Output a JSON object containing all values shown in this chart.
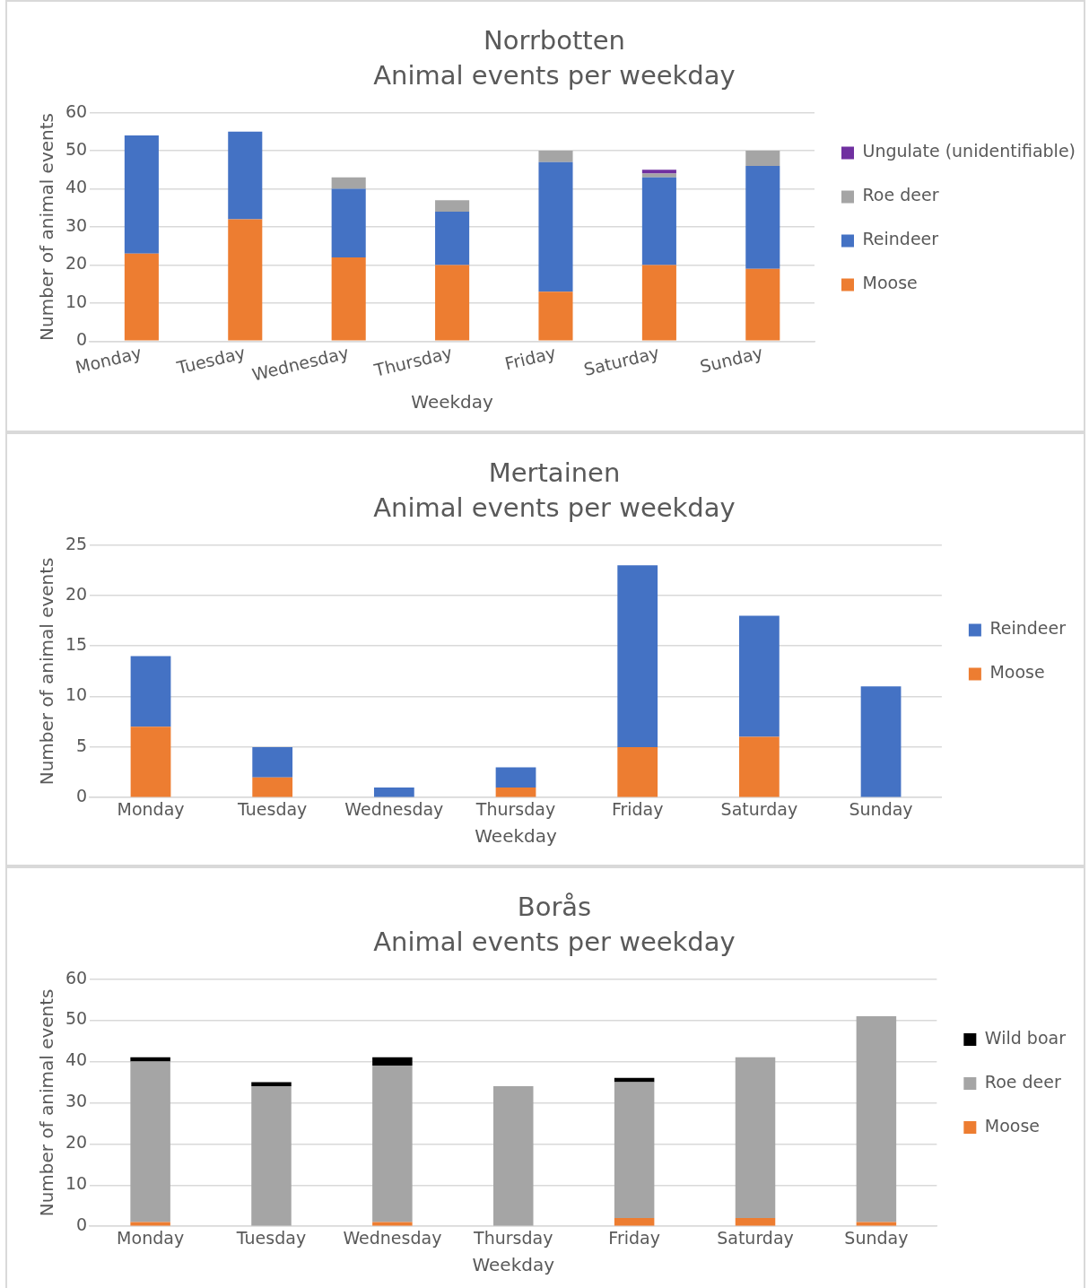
{
  "chart_data": [
    {
      "type": "bar",
      "title": "Norrbotten",
      "subtitle": "Animal events per weekday",
      "xlabel": "Weekday",
      "ylabel": "Number of animal events",
      "categories": [
        "Monday",
        "Tuesday",
        "Wednesday",
        "Thursday",
        "Friday",
        "Saturday",
        "Sunday"
      ],
      "stacked": true,
      "ylim": [
        0,
        60
      ],
      "yticks": [
        0,
        10,
        20,
        30,
        40,
        50,
        60
      ],
      "grid": "y",
      "legend": "right",
      "series": [
        {
          "name": "Moose",
          "color": "#ed7d31",
          "values": [
            23,
            32,
            22,
            20,
            13,
            20,
            19
          ]
        },
        {
          "name": "Reindeer",
          "color": "#4472c4",
          "values": [
            31,
            23,
            18,
            14,
            34,
            23,
            27
          ]
        },
        {
          "name": "Roe deer",
          "color": "#a5a5a5",
          "values": [
            0,
            0,
            3,
            3,
            3,
            1,
            4
          ]
        },
        {
          "name": "Ungulate (unidentifiable)",
          "color": "#7030a0",
          "values": [
            0,
            0,
            0,
            0,
            0,
            1,
            0
          ]
        }
      ]
    },
    {
      "type": "bar",
      "title": "Mertainen",
      "subtitle": "Animal events per weekday",
      "xlabel": "Weekday",
      "ylabel": "Number of animal events",
      "categories": [
        "Monday",
        "Tuesday",
        "Wednesday",
        "Thursday",
        "Friday",
        "Saturday",
        "Sunday"
      ],
      "stacked": true,
      "ylim": [
        0,
        25
      ],
      "yticks": [
        0,
        5,
        10,
        15,
        20,
        25
      ],
      "grid": "y",
      "legend": "right",
      "series": [
        {
          "name": "Moose",
          "color": "#ed7d31",
          "values": [
            7,
            2,
            0,
            1,
            5,
            6,
            0
          ]
        },
        {
          "name": "Reindeer",
          "color": "#4472c4",
          "values": [
            7,
            3,
            1,
            2,
            18,
            12,
            11
          ]
        }
      ]
    },
    {
      "type": "bar",
      "title": "Borås",
      "subtitle": "Animal events per weekday",
      "xlabel": "Weekday",
      "ylabel": "Number of animal events",
      "categories": [
        "Monday",
        "Tuesday",
        "Wednesday",
        "Thursday",
        "Friday",
        "Saturday",
        "Sunday"
      ],
      "stacked": true,
      "ylim": [
        0,
        60
      ],
      "yticks": [
        0,
        10,
        20,
        30,
        40,
        50,
        60
      ],
      "grid": "y",
      "legend": "right",
      "series": [
        {
          "name": "Moose",
          "color": "#ed7d31",
          "values": [
            1,
            0,
            1,
            0,
            2,
            2,
            1
          ]
        },
        {
          "name": "Roe deer",
          "color": "#a5a5a5",
          "values": [
            39,
            34,
            38,
            34,
            33,
            39,
            50
          ]
        },
        {
          "name": "Wild boar",
          "color": "#000000",
          "values": [
            1,
            1,
            2,
            0,
            1,
            0,
            0
          ]
        }
      ]
    }
  ]
}
